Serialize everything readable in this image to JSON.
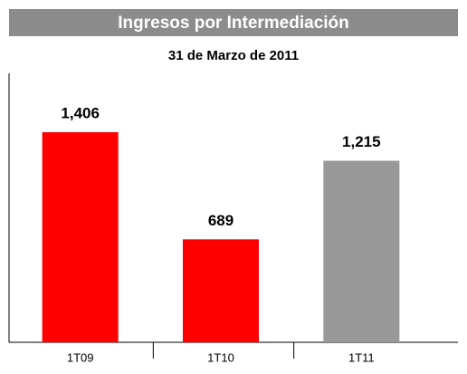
{
  "chart_data": {
    "type": "bar",
    "title": "Ingresos por Intermediación",
    "subtitle": "31 de Marzo de 2011",
    "categories": [
      "1T09",
      "1T10",
      "1T11"
    ],
    "values": [
      1406,
      689,
      1215
    ],
    "value_labels": [
      "1,406",
      "689",
      "1,215"
    ],
    "colors": [
      "#ff0000",
      "#ff0000",
      "#999999"
    ],
    "ylim": [
      0,
      1800
    ]
  }
}
